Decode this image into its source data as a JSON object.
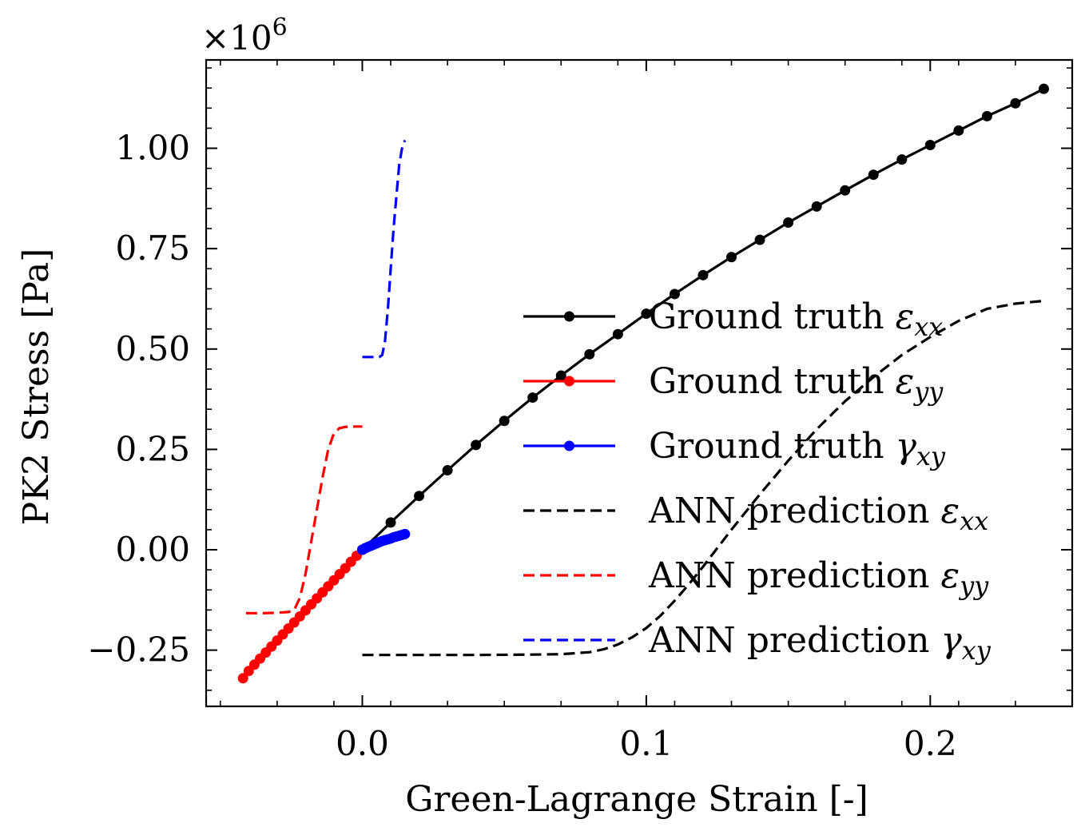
{
  "chart_data": {
    "type": "line",
    "multiplier_label": "×10",
    "multiplier_exponent": "6",
    "xlabel": "Green-Lagrange Strain [-]",
    "ylabel": "PK2 Stress [Pa]",
    "xlim": [
      -0.055,
      0.25
    ],
    "ylim": [
      -0.39,
      1.22
    ],
    "xticks": [
      {
        "value": 0.0,
        "label": "0.0"
      },
      {
        "value": 0.1,
        "label": "0.1"
      },
      {
        "value": 0.2,
        "label": "0.2"
      }
    ],
    "yticks": [
      {
        "value": -0.25,
        "label": "−0.25"
      },
      {
        "value": 0.0,
        "label": "0.00"
      },
      {
        "value": 0.25,
        "label": "0.25"
      },
      {
        "value": 0.5,
        "label": "0.50"
      },
      {
        "value": 0.75,
        "label": "0.75"
      },
      {
        "value": 1.0,
        "label": "1.00"
      }
    ],
    "legend_position": "right",
    "series": [
      {
        "name": "Ground truth ",
        "sym": "ε",
        "sub": "xx",
        "color": "#000000",
        "style": "solid",
        "markers": true,
        "x": [
          0.0,
          0.01,
          0.02,
          0.03,
          0.04,
          0.05,
          0.06,
          0.07,
          0.08,
          0.09,
          0.1,
          0.11,
          0.12,
          0.13,
          0.14,
          0.15,
          0.16,
          0.17,
          0.18,
          0.19,
          0.2,
          0.21,
          0.22,
          0.23,
          0.24
        ],
        "y": [
          0.0,
          0.068,
          0.134,
          0.198,
          0.261,
          0.321,
          0.379,
          0.434,
          0.487,
          0.537,
          0.588,
          0.637,
          0.684,
          0.729,
          0.772,
          0.815,
          0.855,
          0.895,
          0.934,
          0.972,
          1.008,
          1.044,
          1.08,
          1.112,
          1.148
        ]
      },
      {
        "name": "Ground truth ",
        "sym": "ε",
        "sub": "yy",
        "color": "#ff0000",
        "style": "solid",
        "markers": true,
        "x": [
          0.0,
          -0.002,
          -0.004,
          -0.006,
          -0.008,
          -0.01,
          -0.012,
          -0.014,
          -0.016,
          -0.018,
          -0.02,
          -0.022,
          -0.024,
          -0.026,
          -0.028,
          -0.03,
          -0.032,
          -0.034,
          -0.036,
          -0.038,
          -0.04,
          -0.042
        ],
        "y": [
          0.0,
          -0.015,
          -0.03,
          -0.046,
          -0.061,
          -0.076,
          -0.091,
          -0.106,
          -0.121,
          -0.136,
          -0.151,
          -0.166,
          -0.181,
          -0.196,
          -0.211,
          -0.226,
          -0.241,
          -0.256,
          -0.271,
          -0.286,
          -0.302,
          -0.32
        ]
      },
      {
        "name": "Ground truth ",
        "sym": "γ",
        "sub": "xy",
        "color": "#0000ff",
        "style": "solid",
        "markers": true,
        "x": [
          0.0,
          0.001,
          0.002,
          0.003,
          0.004,
          0.005,
          0.006,
          0.007,
          0.008,
          0.009,
          0.01,
          0.011,
          0.012,
          0.013,
          0.014,
          0.015
        ],
        "y": [
          0.0,
          0.004,
          0.007,
          0.01,
          0.013,
          0.016,
          0.019,
          0.022,
          0.024,
          0.026,
          0.028,
          0.031,
          0.033,
          0.035,
          0.037,
          0.039
        ]
      },
      {
        "name": "ANN prediction ",
        "sym": "ε",
        "sub": "xx",
        "color": "#000000",
        "style": "dashed",
        "markers": false,
        "x": [
          0.0,
          0.02,
          0.04,
          0.06,
          0.07,
          0.08,
          0.085,
          0.09,
          0.095,
          0.1,
          0.105,
          0.11,
          0.115,
          0.12,
          0.125,
          0.13,
          0.14,
          0.15,
          0.16,
          0.17,
          0.18,
          0.19,
          0.2,
          0.21,
          0.22,
          0.23,
          0.24
        ],
        "y": [
          -0.262,
          -0.262,
          -0.262,
          -0.261,
          -0.26,
          -0.255,
          -0.248,
          -0.236,
          -0.218,
          -0.195,
          -0.164,
          -0.127,
          -0.086,
          -0.042,
          0.004,
          0.05,
          0.138,
          0.222,
          0.3,
          0.37,
          0.43,
          0.485,
          0.53,
          0.57,
          0.6,
          0.613,
          0.62
        ]
      },
      {
        "name": "ANN prediction ",
        "sym": "ε",
        "sub": "yy",
        "color": "#ff0000",
        "style": "dashed",
        "markers": false,
        "x": [
          -0.041,
          -0.035,
          -0.03,
          -0.026,
          -0.024,
          -0.022,
          -0.02,
          -0.018,
          -0.016,
          -0.014,
          -0.012,
          -0.01,
          -0.008,
          -0.006,
          -0.004,
          0.0
        ],
        "y": [
          -0.158,
          -0.158,
          -0.157,
          -0.155,
          -0.15,
          -0.12,
          -0.06,
          0.02,
          0.1,
          0.18,
          0.25,
          0.29,
          0.303,
          0.306,
          0.307,
          0.307
        ]
      },
      {
        "name": "ANN prediction ",
        "sym": "γ",
        "sub": "xy",
        "color": "#0000ff",
        "style": "dashed",
        "markers": false,
        "x": [
          0.0,
          0.006,
          0.007,
          0.008,
          0.009,
          0.01,
          0.011,
          0.012,
          0.013,
          0.014,
          0.015
        ],
        "y": [
          0.48,
          0.48,
          0.485,
          0.52,
          0.6,
          0.7,
          0.8,
          0.88,
          0.96,
          1.0,
          1.02
        ]
      }
    ]
  }
}
